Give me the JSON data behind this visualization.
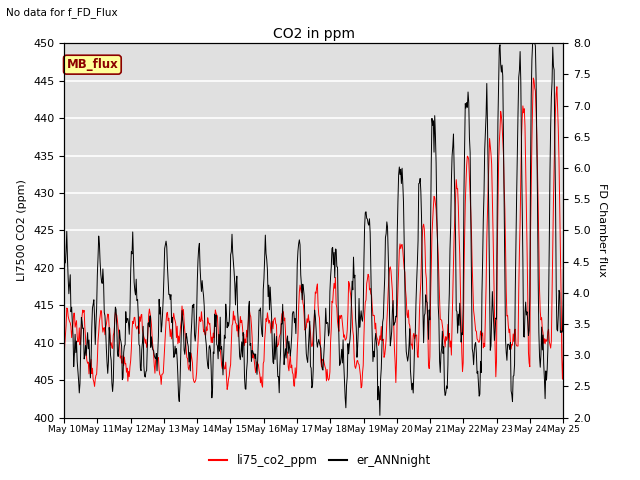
{
  "title": "CO2 in ppm",
  "subtitle": "No data for f_FD_Flux",
  "ylabel_left": "LI7500 CO2 (ppm)",
  "ylabel_right": "FD Chamber flux",
  "ylim_left": [
    400,
    450
  ],
  "ylim_right": [
    2.0,
    8.0
  ],
  "yticks_left": [
    400,
    405,
    410,
    415,
    420,
    425,
    430,
    435,
    440,
    445,
    450
  ],
  "yticks_right": [
    2.0,
    2.5,
    3.0,
    3.5,
    4.0,
    4.5,
    5.0,
    5.5,
    6.0,
    6.5,
    7.0,
    7.5,
    8.0
  ],
  "xticklabels": [
    "May 10",
    "May 11",
    "May 12",
    "May 13",
    "May 14",
    "May 15",
    "May 16",
    "May 17",
    "May 18",
    "May 19",
    "May 20",
    "May 21",
    "May 22",
    "May 23",
    "May 24",
    "May 25"
  ],
  "legend_labels": [
    "li75_co2_ppm",
    "er_ANNnight"
  ],
  "legend_colors": [
    "red",
    "black"
  ],
  "mb_flux_label": "MB_flux",
  "plot_bg_color": "#e0e0e0",
  "grid_color": "white",
  "font_size": 8
}
